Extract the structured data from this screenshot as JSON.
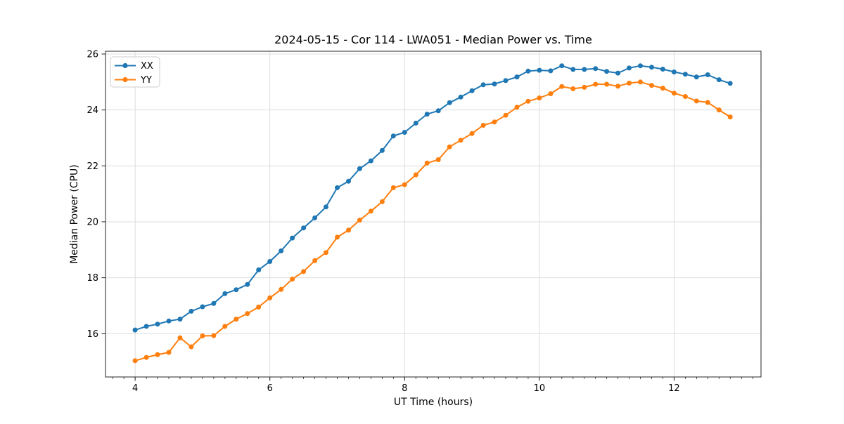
{
  "title": "2024-05-15 - Cor 114 - LWA051 - Median Power vs. Time",
  "legend": {
    "position": "upper-left",
    "items": [
      {
        "label": "XX",
        "color": "#1f77b4"
      },
      {
        "label": "YY",
        "color": "#ff7f0e"
      }
    ]
  },
  "colors": {
    "series_xx": "#1f77b4",
    "series_yy": "#ff7f0e",
    "grid": "#dddddd",
    "spine": "#262626",
    "legend_border": "#cccccc"
  },
  "chart_data": {
    "type": "line",
    "title": "2024-05-15 - Cor 114 - LWA051 - Median Power vs. Time",
    "xlabel": "UT Time (hours)",
    "ylabel": "Median Power (CPU)",
    "xlim": [
      3.56,
      13.29
    ],
    "ylim": [
      14.45,
      26.1
    ],
    "xticks": [
      4,
      6,
      8,
      10,
      12
    ],
    "yticks": [
      16,
      18,
      20,
      22,
      24,
      26
    ],
    "x_minor_step": 0.16667,
    "grid": true,
    "legend_position": "upper-left",
    "marker": "circle",
    "x": [
      4,
      4.167,
      4.333,
      4.5,
      4.667,
      4.833,
      5,
      5.167,
      5.333,
      5.5,
      5.667,
      5.833,
      6,
      6.167,
      6.333,
      6.5,
      6.667,
      6.833,
      7,
      7.167,
      7.333,
      7.5,
      7.667,
      7.833,
      8,
      8.167,
      8.333,
      8.5,
      8.667,
      8.833,
      9,
      9.167,
      9.333,
      9.5,
      9.667,
      9.833,
      10,
      10.167,
      10.333,
      10.5,
      10.667,
      10.833,
      11,
      11.167,
      11.333,
      11.5,
      11.667,
      11.833,
      12,
      12.167,
      12.333,
      12.5,
      12.667,
      12.833
    ],
    "series": [
      {
        "name": "XX",
        "color": "#1f77b4",
        "values": [
          16.13,
          16.26,
          16.34,
          16.45,
          16.52,
          16.8,
          16.96,
          17.08,
          17.43,
          17.57,
          17.76,
          18.28,
          18.58,
          18.96,
          19.42,
          19.78,
          20.14,
          20.53,
          21.22,
          21.45,
          21.9,
          22.18,
          22.55,
          23.07,
          23.2,
          23.53,
          23.85,
          23.97,
          24.26,
          24.46,
          24.69,
          24.9,
          24.93,
          25.05,
          25.18,
          25.39,
          25.42,
          25.4,
          25.58,
          25.45,
          25.45,
          25.48,
          25.38,
          25.32,
          25.5,
          25.58,
          25.53,
          25.46,
          25.36,
          25.28,
          25.18,
          25.26,
          25.08,
          24.95
        ]
      },
      {
        "name": "YY",
        "color": "#ff7f0e",
        "values": [
          15.03,
          15.15,
          15.25,
          15.33,
          15.85,
          15.53,
          15.92,
          15.93,
          16.26,
          16.52,
          16.72,
          16.95,
          17.28,
          17.58,
          17.95,
          18.22,
          18.61,
          18.9,
          19.45,
          19.7,
          20.06,
          20.38,
          20.72,
          21.22,
          21.33,
          21.68,
          22.1,
          22.22,
          22.68,
          22.92,
          23.16,
          23.45,
          23.57,
          23.81,
          24.1,
          24.31,
          24.43,
          24.58,
          24.84,
          24.76,
          24.81,
          24.92,
          24.92,
          24.85,
          24.96,
          25.0,
          24.88,
          24.78,
          24.6,
          24.48,
          24.32,
          24.27,
          24.0,
          23.75
        ]
      }
    ]
  }
}
